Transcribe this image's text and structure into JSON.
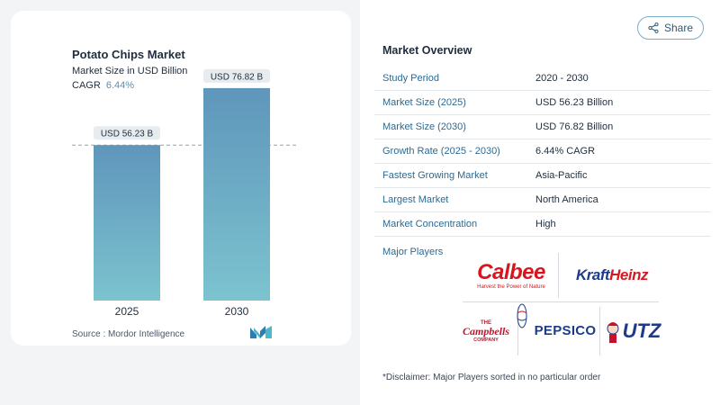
{
  "chart": {
    "title": "Potato Chips Market",
    "subtitle": "Market Size in USD Billion",
    "cagr_label": "CAGR",
    "cagr_value": "6.44%",
    "source": "Source :  Mordor Intelligence"
  },
  "chart_data": {
    "type": "bar",
    "title": "Potato Chips Market",
    "subtitle": "Market Size in USD Billion",
    "categories": [
      "2025",
      "2030"
    ],
    "values": [
      56.23,
      76.82
    ],
    "data_labels": [
      "USD 56.23 B",
      "USD 76.82 B"
    ],
    "ylim": [
      0,
      82
    ],
    "grid": false,
    "reference_line": "dashed line at first bar value",
    "colors": {
      "bar_top": "#5f96bb",
      "bar_bottom": "#7cc3cf",
      "label_bg": "#e7ecef"
    }
  },
  "share": {
    "label": "Share",
    "icon": "share-icon"
  },
  "overview": {
    "title": "Market Overview",
    "rows": [
      {
        "label": "Study Period",
        "value": "2020 - 2030"
      },
      {
        "label": "Market Size (2025)",
        "value": "USD 56.23 Billion"
      },
      {
        "label": "Market Size (2030)",
        "value": "USD 76.82 Billion"
      },
      {
        "label": "Growth Rate (2025 - 2030)",
        "value": "6.44% CAGR"
      },
      {
        "label": "Fastest Growing Market",
        "value": "Asia-Pacific"
      },
      {
        "label": "Largest Market",
        "value": "North America"
      },
      {
        "label": "Market Concentration",
        "value": "High"
      }
    ],
    "players_label": "Major Players",
    "players": {
      "calbee": {
        "name": "Calbee",
        "tagline": "Harvest the Power of Nature"
      },
      "kraft": {
        "part1": "Kraft",
        "part2": "Heinz"
      },
      "campbell": {
        "the": "THE",
        "name": "Campbells",
        "company": "COMPANY"
      },
      "pepsico": {
        "name": "PEPSICO"
      },
      "utz": {
        "name": "UTZ"
      }
    },
    "disclaimer": "*Disclaimer: Major Players sorted in no particular order"
  },
  "colors": {
    "accent": "#2e6a90",
    "cagr": "#5b8fb0"
  }
}
